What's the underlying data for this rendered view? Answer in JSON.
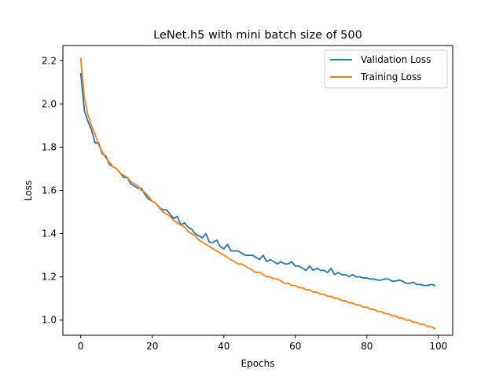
{
  "chart_data": {
    "type": "line",
    "title": "LeNet.h5 with mini batch size of 500",
    "xlabel": "Epochs",
    "ylabel": "Loss",
    "xlim": [
      -5,
      104
    ],
    "ylim": [
      0.93,
      2.27
    ],
    "xticks": [
      0,
      20,
      40,
      60,
      80,
      100
    ],
    "yticks": [
      1.0,
      1.2,
      1.4,
      1.6,
      1.8,
      2.0,
      2.2
    ],
    "xtick_labels": [
      "0",
      "20",
      "40",
      "60",
      "80",
      "100"
    ],
    "ytick_labels": [
      "1.0",
      "1.2",
      "1.4",
      "1.6",
      "1.8",
      "2.0",
      "2.2"
    ],
    "grid": false,
    "legend_position": "top-right",
    "x": [
      0,
      1,
      2,
      3,
      4,
      5,
      6,
      7,
      8,
      9,
      10,
      11,
      12,
      13,
      14,
      15,
      16,
      17,
      18,
      19,
      20,
      21,
      22,
      23,
      24,
      25,
      26,
      27,
      28,
      29,
      30,
      31,
      32,
      33,
      34,
      35,
      36,
      37,
      38,
      39,
      40,
      41,
      42,
      43,
      44,
      45,
      46,
      47,
      48,
      49,
      50,
      51,
      52,
      53,
      54,
      55,
      56,
      57,
      58,
      59,
      60,
      61,
      62,
      63,
      64,
      65,
      66,
      67,
      68,
      69,
      70,
      71,
      72,
      73,
      74,
      75,
      76,
      77,
      78,
      79,
      80,
      81,
      82,
      83,
      84,
      85,
      86,
      87,
      88,
      89,
      90,
      91,
      92,
      93,
      94,
      95,
      96,
      97,
      98,
      99
    ],
    "series": [
      {
        "name": "Validation Loss",
        "color": "#1f77b4",
        "values": [
          2.14,
          1.97,
          1.92,
          1.88,
          1.82,
          1.82,
          1.77,
          1.76,
          1.72,
          1.71,
          1.7,
          1.68,
          1.66,
          1.66,
          1.63,
          1.62,
          1.61,
          1.61,
          1.58,
          1.56,
          1.55,
          1.54,
          1.52,
          1.51,
          1.51,
          1.49,
          1.47,
          1.48,
          1.44,
          1.45,
          1.43,
          1.42,
          1.4,
          1.39,
          1.38,
          1.4,
          1.36,
          1.36,
          1.37,
          1.34,
          1.33,
          1.35,
          1.32,
          1.32,
          1.32,
          1.31,
          1.3,
          1.3,
          1.3,
          1.29,
          1.28,
          1.3,
          1.27,
          1.28,
          1.27,
          1.26,
          1.27,
          1.26,
          1.26,
          1.27,
          1.25,
          1.25,
          1.24,
          1.23,
          1.25,
          1.23,
          1.24,
          1.23,
          1.23,
          1.22,
          1.24,
          1.21,
          1.22,
          1.21,
          1.21,
          1.2,
          1.21,
          1.2,
          1.2,
          1.195,
          1.195,
          1.19,
          1.19,
          1.185,
          1.185,
          1.19,
          1.19,
          1.18,
          1.18,
          1.185,
          1.18,
          1.17,
          1.17,
          1.175,
          1.165,
          1.165,
          1.16,
          1.16,
          1.165,
          1.16
        ]
      },
      {
        "name": "Training Loss",
        "color": "#ff7f0e",
        "values": [
          2.21,
          2.03,
          1.95,
          1.9,
          1.86,
          1.81,
          1.78,
          1.75,
          1.73,
          1.71,
          1.7,
          1.68,
          1.67,
          1.66,
          1.64,
          1.63,
          1.62,
          1.6,
          1.59,
          1.57,
          1.55,
          1.54,
          1.52,
          1.5,
          1.49,
          1.48,
          1.46,
          1.45,
          1.44,
          1.43,
          1.41,
          1.4,
          1.39,
          1.37,
          1.36,
          1.35,
          1.34,
          1.33,
          1.32,
          1.31,
          1.3,
          1.29,
          1.28,
          1.27,
          1.26,
          1.26,
          1.25,
          1.24,
          1.23,
          1.22,
          1.22,
          1.21,
          1.2,
          1.2,
          1.19,
          1.19,
          1.18,
          1.17,
          1.17,
          1.16,
          1.16,
          1.15,
          1.15,
          1.14,
          1.14,
          1.13,
          1.13,
          1.12,
          1.12,
          1.11,
          1.11,
          1.1,
          1.1,
          1.09,
          1.09,
          1.08,
          1.08,
          1.07,
          1.07,
          1.06,
          1.06,
          1.05,
          1.05,
          1.04,
          1.04,
          1.03,
          1.03,
          1.02,
          1.02,
          1.01,
          1.01,
          1.0,
          1.0,
          0.99,
          0.99,
          0.98,
          0.98,
          0.97,
          0.97,
          0.96
        ]
      }
    ]
  }
}
